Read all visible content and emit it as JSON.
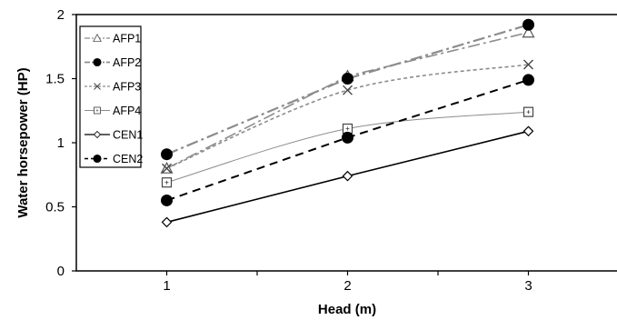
{
  "chart_data": {
    "type": "line",
    "title": "",
    "xlabel": "Head (m)",
    "ylabel": "Water horsepower (HP)",
    "x": [
      1,
      2,
      3
    ],
    "x_ticks": [
      "1",
      "2",
      "3"
    ],
    "y_ticks": [
      "0",
      "0.5",
      "1",
      "1.5",
      "2"
    ],
    "xlim": [
      0.5,
      3.5
    ],
    "ylim": [
      0,
      2
    ],
    "grid": false,
    "legend_position": "top-left",
    "series": [
      {
        "name": "AFP1",
        "values": [
          0.8,
          1.52,
          1.86
        ],
        "color": "#8c8c8c",
        "dash": "13 4 3 4",
        "width": 1.6,
        "marker": "triangle-open",
        "curve": "straight"
      },
      {
        "name": "AFP2",
        "values": [
          0.91,
          1.5,
          1.92
        ],
        "color": "#8c8c8c",
        "dash": "13 4 3 4",
        "width": 2.2,
        "marker": "circle-filled",
        "curve": "straight"
      },
      {
        "name": "AFP3",
        "values": [
          0.8,
          1.41,
          1.61
        ],
        "color": "#8c8c8c",
        "dash": "4 3",
        "width": 1.6,
        "marker": "x",
        "curve": "smooth"
      },
      {
        "name": "AFP4",
        "values": [
          0.69,
          1.11,
          1.24
        ],
        "color": "#8c8c8c",
        "dash": "",
        "width": 1.0,
        "marker": "square-open",
        "curve": "smooth"
      },
      {
        "name": "CEN1",
        "values": [
          0.38,
          0.74,
          1.09
        ],
        "color": "#000000",
        "dash": "",
        "width": 1.6,
        "marker": "diamond-open",
        "curve": "straight"
      },
      {
        "name": "CEN2",
        "values": [
          0.55,
          1.04,
          1.49
        ],
        "color": "#000000",
        "dash": "9 6",
        "width": 2.0,
        "marker": "circle-filled",
        "curve": "straight"
      }
    ]
  }
}
